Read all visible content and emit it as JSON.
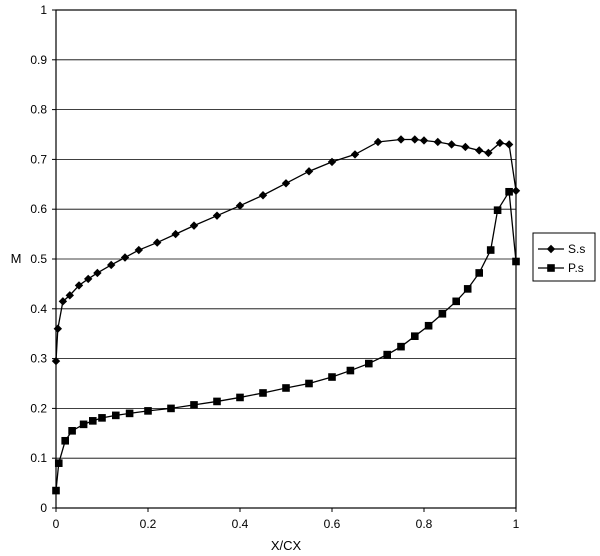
{
  "chart_data": {
    "type": "line",
    "title": "",
    "xlabel": "X/CX",
    "ylabel": "M",
    "xlim": [
      0,
      1
    ],
    "ylim": [
      0,
      1
    ],
    "xticks": [
      "0",
      "0.2",
      "0.4",
      "0.6",
      "0.8",
      "1"
    ],
    "yticks": [
      "0",
      "0.1",
      "0.2",
      "0.3",
      "0.4",
      "0.5",
      "0.6",
      "0.7",
      "0.8",
      "0.9",
      "1"
    ],
    "grid": "horizontal",
    "legend_position": "right",
    "series": [
      {
        "name": "S.s",
        "marker": "diamond",
        "x": [
          0.0,
          0.004,
          0.015,
          0.03,
          0.05,
          0.07,
          0.09,
          0.12,
          0.15,
          0.18,
          0.22,
          0.26,
          0.3,
          0.35,
          0.4,
          0.45,
          0.5,
          0.55,
          0.6,
          0.65,
          0.7,
          0.75,
          0.78,
          0.8,
          0.83,
          0.86,
          0.89,
          0.92,
          0.94,
          0.965,
          0.985,
          1.0
        ],
        "y": [
          0.295,
          0.36,
          0.415,
          0.427,
          0.447,
          0.46,
          0.472,
          0.488,
          0.503,
          0.518,
          0.533,
          0.55,
          0.567,
          0.587,
          0.607,
          0.628,
          0.652,
          0.676,
          0.695,
          0.71,
          0.735,
          0.74,
          0.74,
          0.738,
          0.735,
          0.73,
          0.725,
          0.718,
          0.713,
          0.733,
          0.73,
          0.637
        ]
      },
      {
        "name": "P.s",
        "marker": "square",
        "x": [
          0.0,
          0.006,
          0.02,
          0.035,
          0.06,
          0.08,
          0.1,
          0.13,
          0.16,
          0.2,
          0.25,
          0.3,
          0.35,
          0.4,
          0.45,
          0.5,
          0.55,
          0.6,
          0.64,
          0.68,
          0.72,
          0.75,
          0.78,
          0.81,
          0.84,
          0.87,
          0.895,
          0.92,
          0.945,
          0.96,
          0.985,
          1.0
        ],
        "y": [
          0.035,
          0.09,
          0.135,
          0.155,
          0.168,
          0.175,
          0.181,
          0.186,
          0.19,
          0.195,
          0.2,
          0.207,
          0.214,
          0.222,
          0.231,
          0.241,
          0.25,
          0.263,
          0.276,
          0.29,
          0.308,
          0.324,
          0.345,
          0.366,
          0.39,
          0.415,
          0.44,
          0.472,
          0.518,
          0.598,
          0.635,
          0.495
        ]
      }
    ]
  }
}
